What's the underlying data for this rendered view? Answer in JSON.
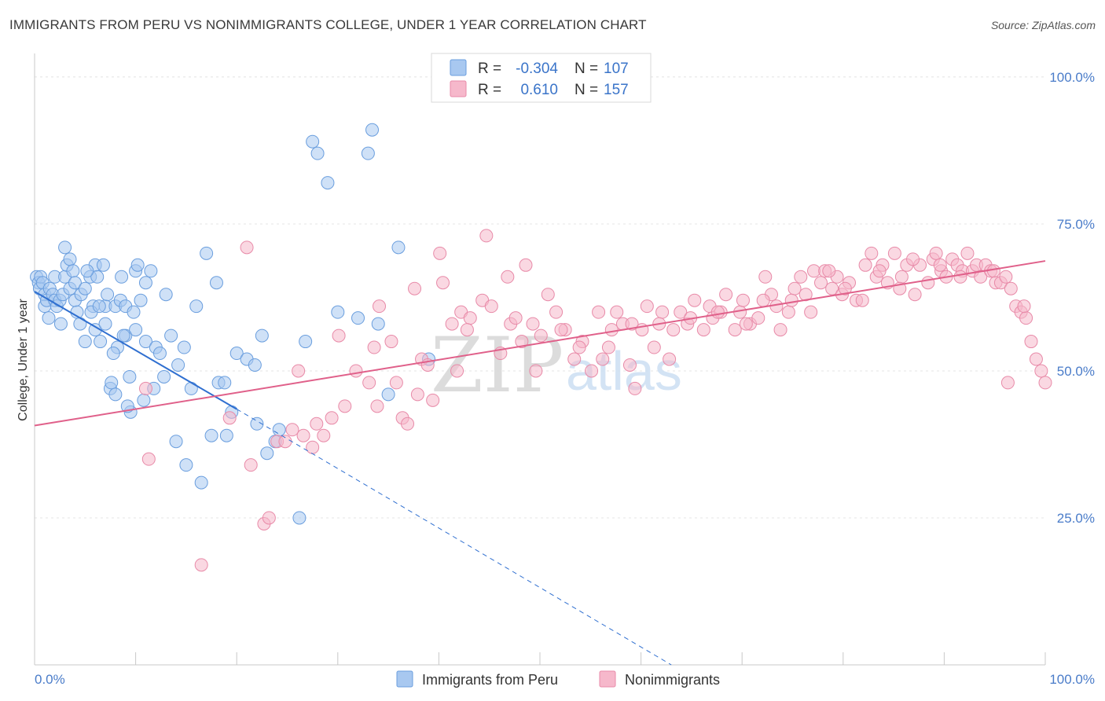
{
  "title": "IMMIGRANTS FROM PERU VS NONIMMIGRANTS COLLEGE, UNDER 1 YEAR CORRELATION CHART",
  "source": "Source: ZipAtlas.com",
  "watermark": {
    "zip": "ZIP",
    "atlas": "atlas"
  },
  "chart_data": {
    "type": "scatter",
    "title": "IMMIGRANTS FROM PERU VS NONIMMIGRANTS COLLEGE, UNDER 1 YEAR CORRELATION CHART",
    "xlabel": "",
    "ylabel": "College, Under 1 year",
    "xlim": [
      0,
      100
    ],
    "ylim": [
      0,
      104
    ],
    "x_tick_labels": {
      "left": "0.0%",
      "right": "100.0%"
    },
    "y_tick_labels": [
      {
        "value": 100,
        "label": "100.0%"
      },
      {
        "value": 75,
        "label": "75.0%"
      },
      {
        "value": 50,
        "label": "50.0%"
      },
      {
        "value": 25,
        "label": "25.0%"
      }
    ],
    "grid": true,
    "legend": [
      {
        "r_label": "R =",
        "r_value": "-0.304",
        "n_label": "N =",
        "n_value": "107",
        "color": "#a8c8f0"
      },
      {
        "r_label": "R =",
        "r_value": "0.610",
        "n_label": "N =",
        "n_value": "157",
        "color": "#f6b8cb"
      }
    ],
    "series": [
      {
        "name": "Immigrants from Peru",
        "color": "#a8c8f0",
        "stroke": "#6a9ede",
        "trend": {
          "x0": 0,
          "y0": 63.5,
          "x1": 20,
          "y1": 43.5,
          "dash_to_x": 63,
          "dash_to_y": 0,
          "color": "#2f6fd0"
        },
        "points": [
          [
            0.2,
            66
          ],
          [
            0.4,
            65
          ],
          [
            0.5,
            64
          ],
          [
            0.6,
            66
          ],
          [
            0.8,
            65
          ],
          [
            1,
            63
          ],
          [
            1,
            61
          ],
          [
            1.2,
            62
          ],
          [
            1.4,
            59
          ],
          [
            1.5,
            64
          ],
          [
            1.8,
            63
          ],
          [
            2,
            62
          ],
          [
            2,
            66
          ],
          [
            2.2,
            61
          ],
          [
            2.5,
            62
          ],
          [
            2.6,
            58
          ],
          [
            2.8,
            63
          ],
          [
            3,
            66
          ],
          [
            3,
            71
          ],
          [
            3.2,
            68
          ],
          [
            3.5,
            64
          ],
          [
            3.5,
            69
          ],
          [
            3.8,
            67
          ],
          [
            4,
            62
          ],
          [
            4,
            65
          ],
          [
            4.2,
            60
          ],
          [
            4.5,
            58
          ],
          [
            4.6,
            63
          ],
          [
            5,
            55
          ],
          [
            5,
            64
          ],
          [
            5.5,
            66
          ],
          [
            5.8,
            61
          ],
          [
            6,
            57
          ],
          [
            6,
            68
          ],
          [
            6.2,
            66
          ],
          [
            6.5,
            55
          ],
          [
            6.8,
            68
          ],
          [
            7,
            58
          ],
          [
            7,
            61
          ],
          [
            7.2,
            63
          ],
          [
            7.5,
            47
          ],
          [
            7.6,
            48
          ],
          [
            8,
            61
          ],
          [
            8,
            46
          ],
          [
            8.2,
            54
          ],
          [
            8.5,
            62
          ],
          [
            8.6,
            66
          ],
          [
            9,
            61
          ],
          [
            9,
            56
          ],
          [
            9.5,
            43
          ],
          [
            9.8,
            60
          ],
          [
            10,
            57
          ],
          [
            10,
            67
          ],
          [
            10.2,
            68
          ],
          [
            10.5,
            62
          ],
          [
            11,
            55
          ],
          [
            11,
            65
          ],
          [
            11.5,
            67
          ],
          [
            12,
            54
          ],
          [
            12.4,
            53
          ],
          [
            5.2,
            67
          ],
          [
            5.6,
            60
          ],
          [
            6.4,
            61
          ],
          [
            7.8,
            53
          ],
          [
            8.8,
            56
          ],
          [
            9.2,
            44
          ],
          [
            9.4,
            49
          ],
          [
            10.8,
            45
          ],
          [
            11.8,
            47
          ],
          [
            12.8,
            49
          ],
          [
            13,
            63
          ],
          [
            13.5,
            56
          ],
          [
            14,
            38
          ],
          [
            14.2,
            51
          ],
          [
            14.8,
            54
          ],
          [
            15,
            34
          ],
          [
            15.5,
            47
          ],
          [
            16,
            61
          ],
          [
            16.5,
            31
          ],
          [
            17,
            70
          ],
          [
            17.5,
            39
          ],
          [
            18,
            65
          ],
          [
            18.2,
            48
          ],
          [
            18.8,
            48
          ],
          [
            19,
            39
          ],
          [
            19.5,
            43
          ],
          [
            20,
            53
          ],
          [
            21,
            52
          ],
          [
            21.8,
            51
          ],
          [
            22,
            41
          ],
          [
            22.5,
            56
          ],
          [
            23,
            36
          ],
          [
            23.8,
            38
          ],
          [
            24.2,
            40
          ],
          [
            26.2,
            25
          ],
          [
            26.8,
            55
          ],
          [
            27.5,
            89
          ],
          [
            28,
            87
          ],
          [
            29,
            82
          ],
          [
            30,
            60
          ],
          [
            32,
            59
          ],
          [
            33,
            87
          ],
          [
            33.4,
            91
          ],
          [
            34,
            58
          ],
          [
            35,
            46
          ],
          [
            36,
            71
          ],
          [
            39,
            52
          ]
        ]
      },
      {
        "name": "Nonimmigrants",
        "color": "#f6b8cb",
        "stroke": "#e88aa8",
        "trend": {
          "x0": 0,
          "y0": 40.7,
          "x1": 100,
          "y1": 68.7,
          "color": "#e0608a"
        },
        "points": [
          [
            11,
            47
          ],
          [
            11.3,
            35
          ],
          [
            16.5,
            17
          ],
          [
            19.3,
            42
          ],
          [
            21,
            71
          ],
          [
            21.4,
            34
          ],
          [
            22.7,
            24
          ],
          [
            23.2,
            25
          ],
          [
            24,
            38
          ],
          [
            25.5,
            40
          ],
          [
            26.1,
            50
          ],
          [
            26.6,
            39
          ],
          [
            27.5,
            37
          ],
          [
            28.6,
            39
          ],
          [
            29.4,
            42
          ],
          [
            30.1,
            56
          ],
          [
            30.7,
            44
          ],
          [
            31.8,
            50
          ],
          [
            33.1,
            48
          ],
          [
            33.6,
            54
          ],
          [
            34.1,
            61
          ],
          [
            35.3,
            55
          ],
          [
            35.8,
            48
          ],
          [
            36.4,
            42
          ],
          [
            36.9,
            41
          ],
          [
            37.6,
            64
          ],
          [
            38.3,
            52
          ],
          [
            38.9,
            51
          ],
          [
            39.4,
            45
          ],
          [
            40.1,
            70
          ],
          [
            40.4,
            65
          ],
          [
            41.3,
            58
          ],
          [
            41.8,
            50
          ],
          [
            42.2,
            60
          ],
          [
            43.1,
            59
          ],
          [
            44.3,
            62
          ],
          [
            44.7,
            73
          ],
          [
            45.2,
            61
          ],
          [
            46.1,
            53
          ],
          [
            46.8,
            66
          ],
          [
            47.1,
            58
          ],
          [
            48.2,
            55
          ],
          [
            48.6,
            68
          ],
          [
            49.3,
            58
          ],
          [
            49.6,
            50
          ],
          [
            50.1,
            56
          ],
          [
            50.8,
            63
          ],
          [
            51.6,
            60
          ],
          [
            52.5,
            57
          ],
          [
            53.4,
            52
          ],
          [
            54.2,
            55
          ],
          [
            55.1,
            50
          ],
          [
            55.8,
            60
          ],
          [
            56.2,
            52
          ],
          [
            57.1,
            57
          ],
          [
            57.6,
            60
          ],
          [
            58.2,
            58
          ],
          [
            58.9,
            51
          ],
          [
            59.4,
            47
          ],
          [
            60.1,
            57
          ],
          [
            60.6,
            61
          ],
          [
            61.3,
            54
          ],
          [
            62.1,
            60
          ],
          [
            62.8,
            52
          ],
          [
            63.2,
            57
          ],
          [
            63.9,
            60
          ],
          [
            64.6,
            58
          ],
          [
            65.3,
            62
          ],
          [
            66.2,
            57
          ],
          [
            66.8,
            61
          ],
          [
            67.1,
            59
          ],
          [
            67.9,
            60
          ],
          [
            68.4,
            63
          ],
          [
            69.3,
            57
          ],
          [
            69.8,
            60
          ],
          [
            70.1,
            62
          ],
          [
            70.8,
            58
          ],
          [
            71.6,
            59
          ],
          [
            72.3,
            66
          ],
          [
            72.9,
            63
          ],
          [
            73.4,
            61
          ],
          [
            73.8,
            57
          ],
          [
            74.6,
            60
          ],
          [
            75.2,
            64
          ],
          [
            75.8,
            66
          ],
          [
            76.3,
            63
          ],
          [
            77.1,
            67
          ],
          [
            77.8,
            65
          ],
          [
            78.2,
            67
          ],
          [
            78.9,
            64
          ],
          [
            79.4,
            66
          ],
          [
            79.9,
            63
          ],
          [
            80.6,
            65
          ],
          [
            81.3,
            62
          ],
          [
            82.2,
            68
          ],
          [
            82.8,
            70
          ],
          [
            83.3,
            66
          ],
          [
            83.9,
            68
          ],
          [
            84.4,
            65
          ],
          [
            85.1,
            70
          ],
          [
            85.8,
            66
          ],
          [
            86.3,
            68
          ],
          [
            87.1,
            63
          ],
          [
            87.6,
            68
          ],
          [
            88.4,
            65
          ],
          [
            88.9,
            69
          ],
          [
            89.2,
            70
          ],
          [
            89.7,
            67
          ],
          [
            90.2,
            66
          ],
          [
            90.8,
            69
          ],
          [
            91.3,
            68
          ],
          [
            91.8,
            67
          ],
          [
            92.3,
            70
          ],
          [
            92.8,
            67
          ],
          [
            93.2,
            68
          ],
          [
            93.6,
            66
          ],
          [
            94.1,
            68
          ],
          [
            94.6,
            67
          ],
          [
            95.1,
            65
          ],
          [
            95.6,
            65
          ],
          [
            96.1,
            66
          ],
          [
            96.6,
            64
          ],
          [
            97.1,
            61
          ],
          [
            97.6,
            60
          ],
          [
            98.1,
            59
          ],
          [
            98.6,
            55
          ],
          [
            99.1,
            52
          ],
          [
            99.6,
            50
          ],
          [
            100,
            48
          ],
          [
            96.3,
            48
          ],
          [
            85.6,
            64
          ],
          [
            81.9,
            62
          ],
          [
            78.6,
            67
          ],
          [
            74.9,
            62
          ],
          [
            70.4,
            58
          ],
          [
            64.9,
            59
          ],
          [
            59.1,
            58
          ],
          [
            53.9,
            54
          ],
          [
            47.6,
            59
          ],
          [
            42.8,
            57
          ],
          [
            37.9,
            46
          ],
          [
            33.9,
            44
          ],
          [
            27.9,
            41
          ],
          [
            24.8,
            38
          ],
          [
            89.6,
            68
          ],
          [
            94.9,
            67
          ],
          [
            97.9,
            61
          ],
          [
            91.6,
            66
          ],
          [
            86.9,
            69
          ],
          [
            83.6,
            67
          ],
          [
            80.2,
            64
          ],
          [
            76.8,
            60
          ],
          [
            72.1,
            62
          ],
          [
            67.6,
            60
          ],
          [
            61.8,
            58
          ],
          [
            56.8,
            54
          ],
          [
            52.1,
            57
          ]
        ]
      }
    ]
  }
}
